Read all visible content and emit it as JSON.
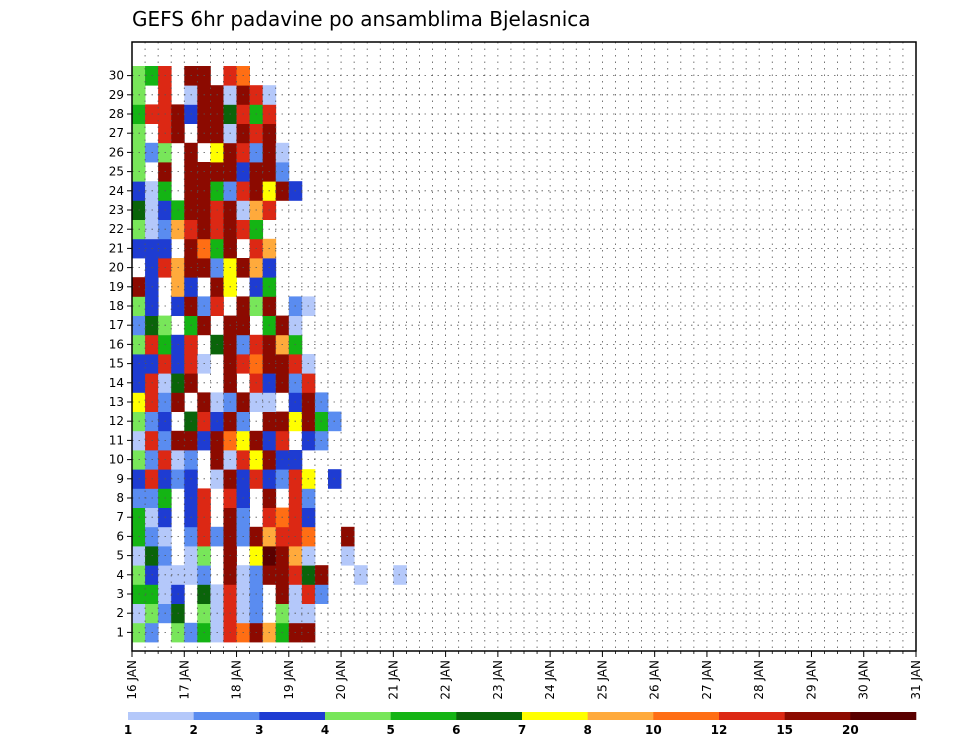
{
  "chart_data": {
    "type": "heatmap",
    "title": "GEFS 6hr padavine po ansamblima Bjelasnica",
    "xlabel": "",
    "ylabel": "",
    "x_ticks": [
      "16 JAN",
      "17 JAN",
      "18 JAN",
      "19 JAN",
      "20 JAN",
      "21 JAN",
      "22 JAN",
      "23 JAN",
      "24 JAN",
      "25 JAN",
      "26 JAN",
      "27 JAN",
      "28 JAN",
      "29 JAN",
      "30 JAN",
      "31 JAN"
    ],
    "y_ticks": [
      "1",
      "2",
      "3",
      "4",
      "5",
      "6",
      "7",
      "8",
      "9",
      "10",
      "11",
      "12",
      "13",
      "14",
      "15",
      "16",
      "17",
      "18",
      "19",
      "20",
      "21",
      "22",
      "23",
      "24",
      "25",
      "26",
      "27",
      "28",
      "29",
      "30"
    ],
    "grid": true,
    "legend": "bottom",
    "colorbar": {
      "labels": [
        "1",
        "2",
        "3",
        "4",
        "5",
        "6",
        "7",
        "8",
        "10",
        "12",
        "15",
        "20"
      ],
      "colors": [
        "#b4c8fa",
        "#5a8cf0",
        "#1e3cd2",
        "#78e65a",
        "#14b414",
        "#0a640a",
        "#ffff00",
        "#ffaa3c",
        "#ff6e14",
        "#dc2814",
        "#8c0a00",
        "#5a0000"
      ]
    },
    "members_description": "30 ensemble members (rows 1-30), 60 six-hourly steps from 16 JAN to 31 JAN; cell value = category index 1-12 (0 = below 1 mm)",
    "matrix": [
      "4204251A9B85BB0000000000000000000000000000000000000000000000",
      "1426041A1204110000000000000000000000000000000000000000000000",
      "5513061A120B1A2000000000000000000000000000000000000000000000",
      "4311120B12BBA6B001001000000000000000000000000000000000000000",
      "1620140B07CB810010000000000000000000000000000000000000000000",
      "52102A2B2B8AA900B00000000000000000000000000000000000000000000",
      "51303A0B20A9A300000000000000000000000000000000000000000000000",
      "22503A0A30B0A200000000000000000000000000000000000000000000000",
      "3A32301B3A32A70300000000000000000000000000000000000000000000000",
      "42A120B1A7B330000000000000000000000000000000000000000000000000",
      "1A2BB3B97B3A0320000000000000000000000000000000000000000000000",
      "42306A3B20BB7B52000000000000000000000000000000000000000000000",
      "7A2B0B12B1103B20000000000000000000000000000000000000000000000",
      "3A16B00B0A3B2A000000000000000000000000000000000000000000000000",
      "33A3A10BA9BBA100000000000000000000000000000000000000000000000",
      "4A53A06B2AB8500000000000000000000000000000000000000000000000000",
      "26405B0BB05B1000000000000000000000000000000000000000000000000000",
      "4303B2A0B4B0210000000000000000000000000000000000000000000000000",
      "B30830B70350000000000000000000000000000000000000000000000000000",
      "03A8BB27B8300000000000000000000000000000000000000000000000000000",
      "3330B95B0A8000000000000000000000000000000000000000000000000000000",
      "4128ABABA5000000000000000000000000000000000000000000000000000000",
      "6135BBAB18A000000000000000000000000000000000000000000000000000000",
      "3150BB52AB7B30000000000000000000000000000000000000000000000000000",
      "40B0BBBB3BB200000000000000000000000000000000000000000000000000000",
      "4240B07BA2B100000000000000000000000000000000000000000000000000000",
      "40AB0BB1BAB000000000000000000000000000000000000000000000000000000",
      "5AAB3BB6A5A000000000000000000000000000000000000000000000000000000",
      "40A01BB1BA1000000000000000000000000000000000000000000000000000000",
      "45A0BB0A90000000000000000000000000000000000000000000000000000000"
    ]
  }
}
